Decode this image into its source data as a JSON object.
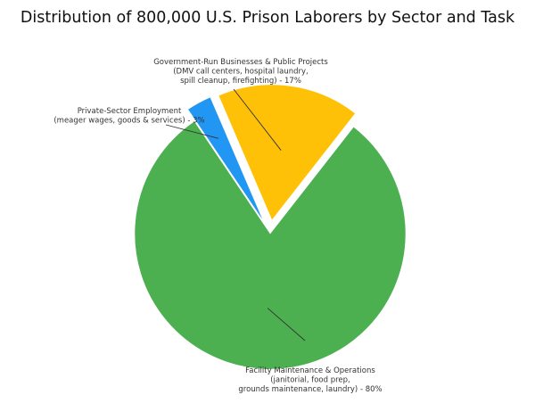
{
  "chart_data": {
    "type": "pie",
    "title": "Distribution of 800,000 U.S. Prison Laborers by Sector and Task",
    "slices": [
      {
        "name": "Facility Maintenance & Operations",
        "value": 80,
        "color": "#4caf50",
        "exploded": false,
        "label_lines": [
          "Facility Maintenance & Operations",
          "(janitorial, food prep,",
          "grounds maintenance, laundry) - 80%"
        ]
      },
      {
        "name": "Government-Run Businesses & Public Projects",
        "value": 17,
        "color": "#ffc107",
        "exploded": true,
        "label_lines": [
          "Government-Run Businesses & Public Projects",
          "(DMV call centers, hospital laundry,",
          "spill cleanup, firefighting) - 17%"
        ]
      },
      {
        "name": "Private-Sector Employment",
        "value": 3,
        "color": "#2196f3",
        "exploded": true,
        "label_lines": [
          "Private-Sector Employment",
          "(meager wages, goods & services) - 3%"
        ]
      }
    ]
  }
}
